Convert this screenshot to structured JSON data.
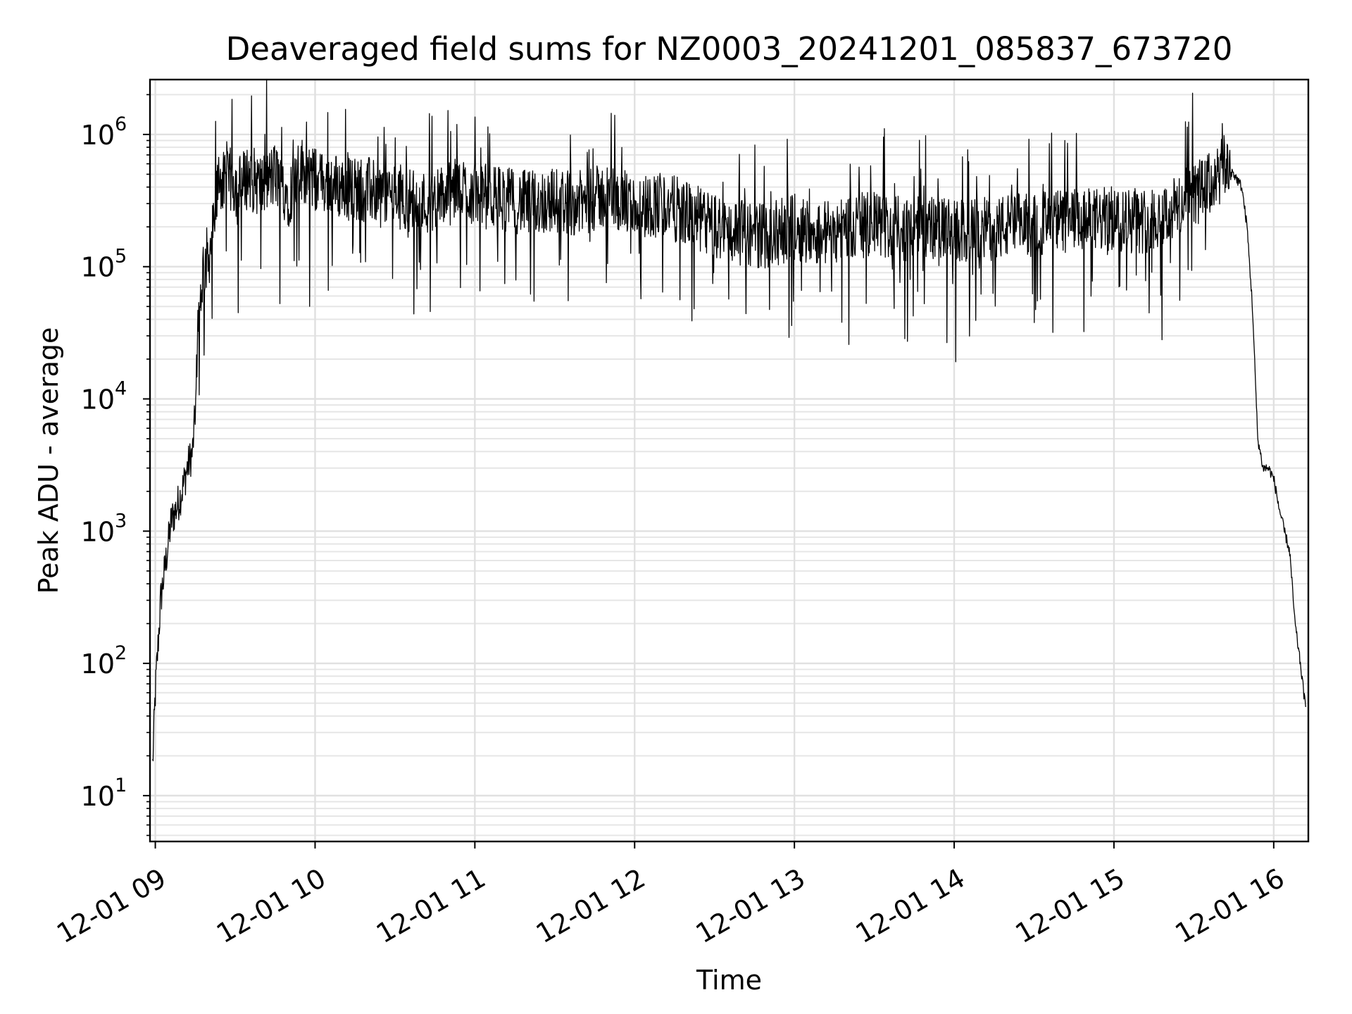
{
  "chart_data": {
    "type": "line",
    "title": "Deaveraged field sums for NZ0003_20241201_085837_673720",
    "xlabel": "Time",
    "ylabel": "Peak ADU - average",
    "yscale": "log",
    "ylim": [
      4.5,
      2600000
    ],
    "xlim": [
      "2024-12-01 08:58",
      "2024-12-01 16:13"
    ],
    "grid": "both (major and minor)",
    "x_ticks": [
      "12-01 09",
      "12-01 10",
      "12-01 11",
      "12-01 12",
      "12-01 13",
      "12-01 14",
      "12-01 15",
      "12-01 16"
    ],
    "y_ticks": [
      {
        "base": "10",
        "exp": "1",
        "value": 10
      },
      {
        "base": "10",
        "exp": "2",
        "value": 100
      },
      {
        "base": "10",
        "exp": "3",
        "value": 1000
      },
      {
        "base": "10",
        "exp": "4",
        "value": 10000
      },
      {
        "base": "10",
        "exp": "5",
        "value": 100000
      },
      {
        "base": "10",
        "exp": "6",
        "value": 1000000
      }
    ],
    "line_color": "#000000",
    "series": [
      {
        "x": [
          "08:59",
          "09:00",
          "09:02",
          "09:04",
          "09:06",
          "09:08",
          "09:10",
          "09:12",
          "09:14",
          "09:15",
          "09:17",
          "09:18",
          "09:20",
          "09:22",
          "09:24",
          "09:26",
          "09:28",
          "09:32",
          "09:35",
          "09:40",
          "09:45",
          "09:50",
          "09:55",
          "10:00",
          "10:10",
          "10:20",
          "10:30",
          "10:40",
          "10:50",
          "10:55",
          "11:00",
          "11:10",
          "11:20",
          "11:30",
          "11:40",
          "11:50",
          "12:00",
          "12:10",
          "12:20",
          "12:30",
          "12:40",
          "12:50",
          "13:00",
          "13:10",
          "13:20",
          "13:30",
          "13:40",
          "13:50",
          "14:00",
          "14:10",
          "14:20",
          "14:30",
          "14:40",
          "14:50",
          "15:00",
          "15:10",
          "15:20",
          "15:30",
          "15:35",
          "15:40",
          "15:42",
          "15:45",
          "15:48",
          "15:50",
          "15:52",
          "15:54",
          "15:56",
          "15:58",
          "16:00",
          "16:02",
          "16:04",
          "16:06",
          "16:08",
          "16:10",
          "16:12"
        ],
        "y": [
          17,
          60,
          300,
          600,
          1200,
          1500,
          2000,
          3000,
          4000,
          8000,
          60000,
          100000,
          120000,
          200000,
          500000,
          400000,
          450000,
          400000,
          500000,
          400000,
          500000,
          350000,
          550000,
          450000,
          400000,
          380000,
          350000,
          300000,
          350000,
          400000,
          350000,
          330000,
          300000,
          320000,
          300000,
          350000,
          280000,
          300000,
          250000,
          200000,
          180000,
          170000,
          200000,
          180000,
          200000,
          210000,
          190000,
          200000,
          180000,
          190000,
          200000,
          210000,
          220000,
          220000,
          230000,
          220000,
          250000,
          350000,
          400000,
          500000,
          600000,
          500000,
          400000,
          200000,
          50000,
          5000,
          3000,
          3000,
          2500,
          1500,
          1000,
          700,
          200,
          100,
          45
        ]
      }
    ]
  }
}
